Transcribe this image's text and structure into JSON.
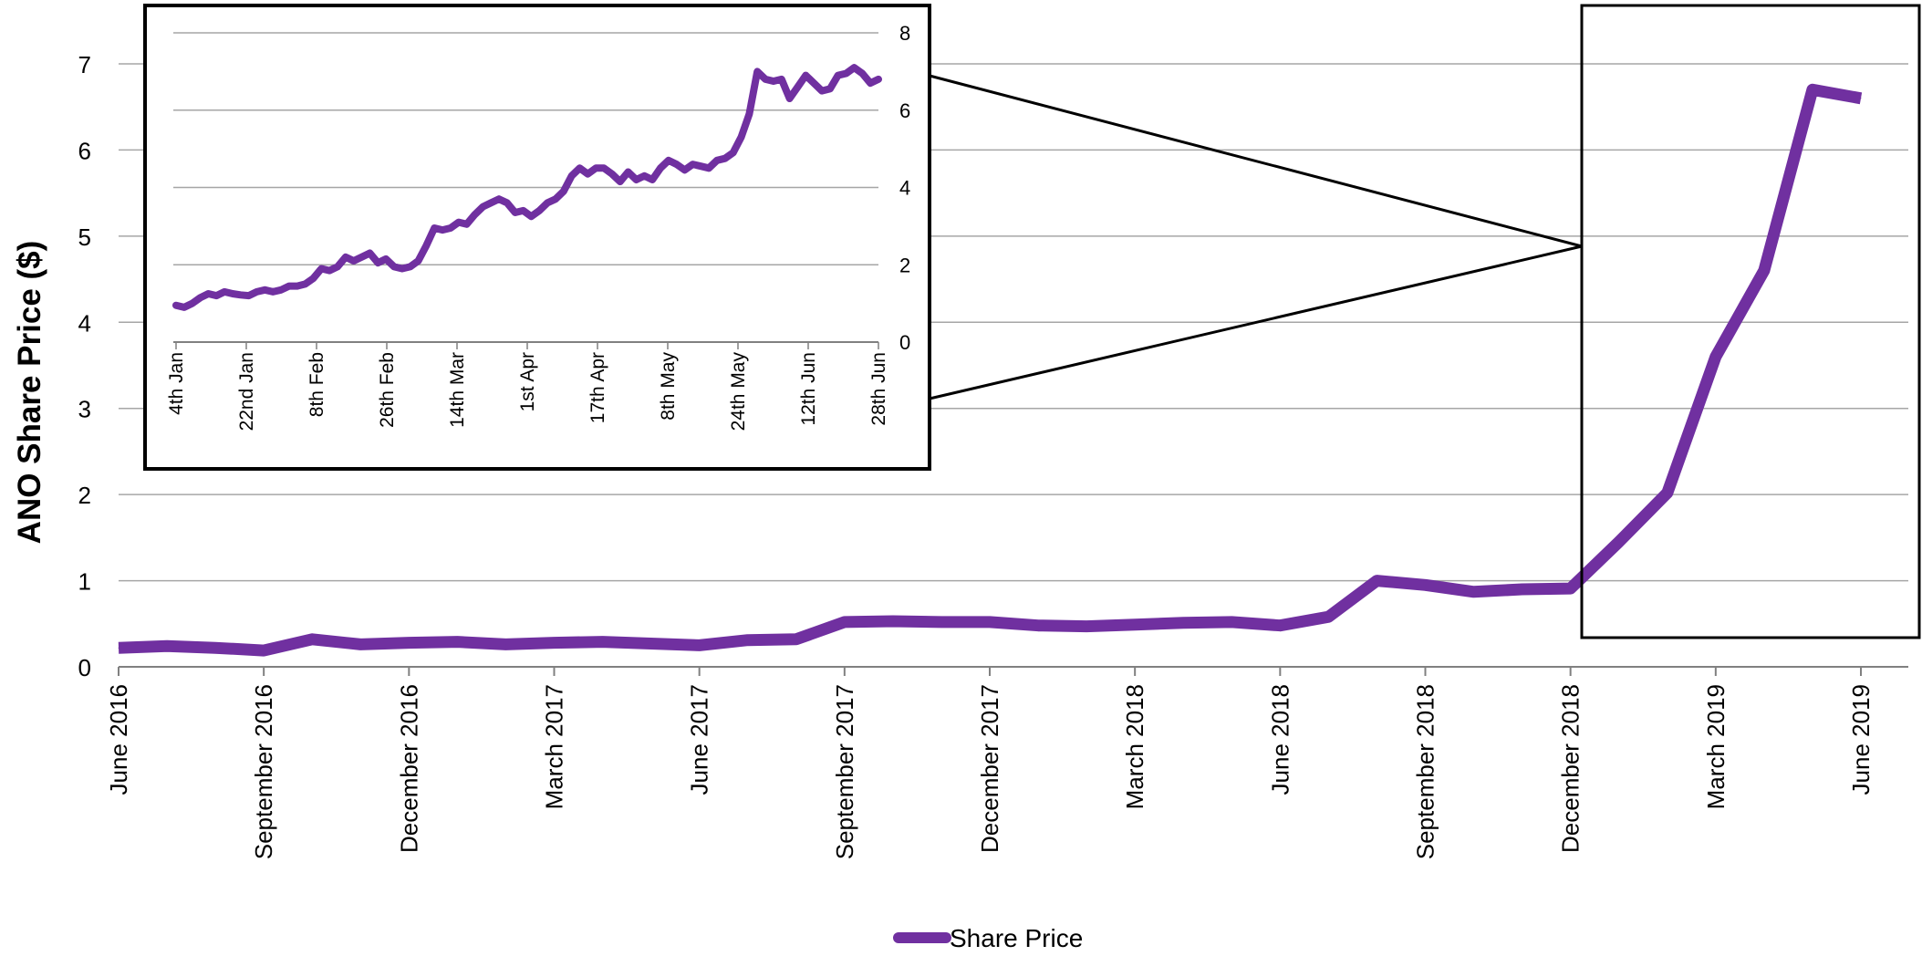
{
  "chart_data": [
    {
      "id": "main",
      "type": "line",
      "title": "",
      "xlabel": "",
      "ylabel": "ANO Share Price ($)",
      "ylim": [
        0,
        7
      ],
      "yticks": [
        0,
        1,
        2,
        3,
        4,
        5,
        6,
        7
      ],
      "grid": true,
      "legend_position": "bottom",
      "x_tick_labels": [
        "June 2016",
        "September 2016",
        "December 2016",
        "March 2017",
        "June 2017",
        "September 2017",
        "December 2017",
        "March 2018",
        "June 2018",
        "September 2018",
        "December 2018",
        "March 2019",
        "June 2019"
      ],
      "x": [
        "Jun 2016",
        "Jul 2016",
        "Aug 2016",
        "Sep 2016",
        "Oct 2016",
        "Nov 2016",
        "Dec 2016",
        "Jan 2017",
        "Feb 2017",
        "Mar 2017",
        "Apr 2017",
        "May 2017",
        "Jun 2017",
        "Jul 2017",
        "Aug 2017",
        "Sep 2017",
        "Oct 2017",
        "Nov 2017",
        "Dec 2017",
        "Jan 2018",
        "Feb 2018",
        "Mar 2018",
        "Apr 2018",
        "May 2018",
        "Jun 2018",
        "Jul 2018",
        "Aug 2018",
        "Sep 2018",
        "Oct 2018",
        "Nov 2018",
        "Dec 2018",
        "Jan 2019",
        "Feb 2019",
        "Mar 2019",
        "Apr 2019",
        "May 2019",
        "Jun 2019"
      ],
      "series": [
        {
          "name": "Share Price",
          "color": "#7030a0",
          "values": [
            0.22,
            0.24,
            0.22,
            0.19,
            0.32,
            0.26,
            0.28,
            0.29,
            0.26,
            0.28,
            0.29,
            0.27,
            0.25,
            0.31,
            0.32,
            0.52,
            0.53,
            0.52,
            0.52,
            0.48,
            0.47,
            0.49,
            0.51,
            0.52,
            0.48,
            0.58,
            1.0,
            0.95,
            0.87,
            0.9,
            0.91,
            1.45,
            2.02,
            3.6,
            4.6,
            6.7,
            6.6
          ]
        }
      ]
    },
    {
      "id": "inset",
      "type": "line",
      "title": "",
      "ylim": [
        0,
        8
      ],
      "yticks": [
        0,
        2,
        4,
        6,
        8
      ],
      "grid": true,
      "x_tick_labels": [
        "4th Jan",
        "22nd Jan",
        "8th Feb",
        "26th Feb",
        "14th Mar",
        "1st Apr",
        "17th Apr",
        "8th May",
        "24th May",
        "12th Jun",
        "28th Jun"
      ],
      "series": [
        {
          "name": "Share Price",
          "color": "#7030a0",
          "values": [
            0.95,
            0.9,
            1.0,
            1.15,
            1.25,
            1.2,
            1.3,
            1.25,
            1.22,
            1.2,
            1.3,
            1.35,
            1.3,
            1.35,
            1.45,
            1.45,
            1.5,
            1.65,
            1.9,
            1.85,
            1.95,
            2.2,
            2.1,
            2.2,
            2.3,
            2.05,
            2.15,
            1.95,
            1.9,
            1.95,
            2.1,
            2.5,
            2.95,
            2.9,
            2.95,
            3.1,
            3.05,
            3.3,
            3.5,
            3.6,
            3.7,
            3.6,
            3.35,
            3.4,
            3.25,
            3.4,
            3.6,
            3.7,
            3.9,
            4.3,
            4.5,
            4.35,
            4.5,
            4.5,
            4.35,
            4.15,
            4.4,
            4.2,
            4.3,
            4.2,
            4.5,
            4.7,
            4.6,
            4.45,
            4.6,
            4.55,
            4.5,
            4.7,
            4.75,
            4.9,
            5.3,
            5.9,
            7.0,
            6.8,
            6.75,
            6.8,
            6.3,
            6.6,
            6.9,
            6.7,
            6.5,
            6.55,
            6.9,
            6.95,
            7.1,
            6.95,
            6.7,
            6.8
          ]
        }
      ]
    }
  ],
  "legend": {
    "label": "Share Price",
    "color": "#7030a0"
  },
  "colors": {
    "gridline": "#a6a6a6",
    "axis": "#000000"
  }
}
